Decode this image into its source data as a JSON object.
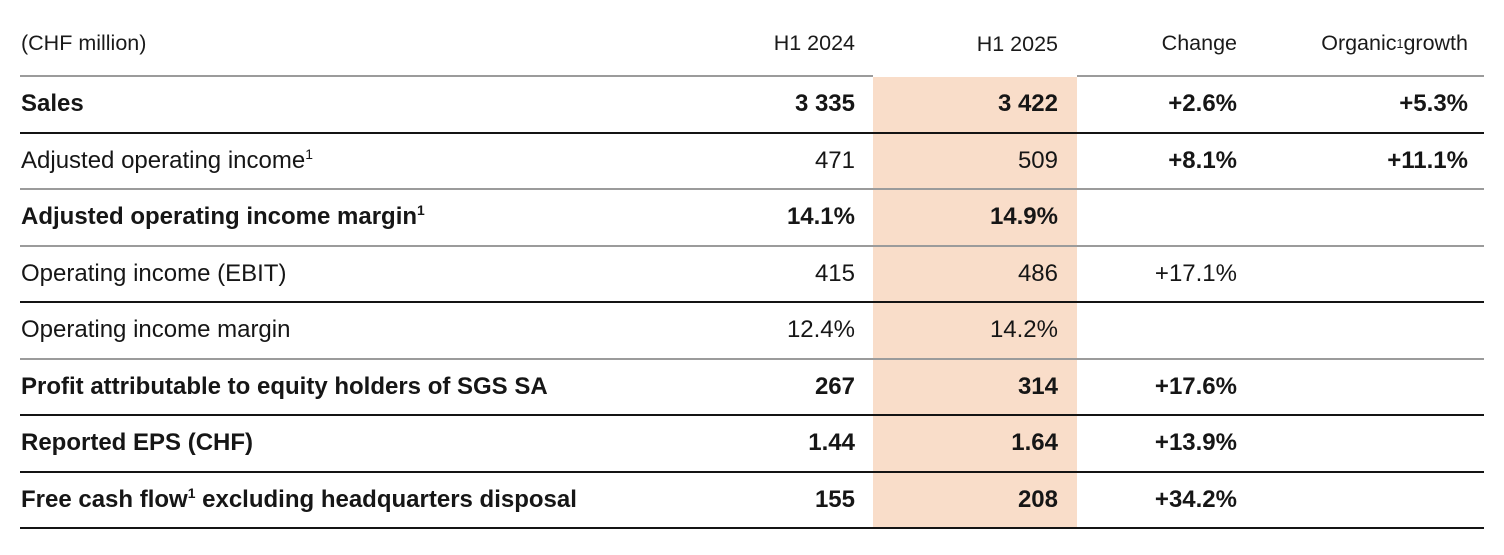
{
  "header": {
    "unit": "(CHF million)",
    "col_h1_2024": "H1 2024",
    "col_h1_2025": "H1 2025",
    "col_change": "Change",
    "col_organic_pre": "Organic",
    "col_organic_sup": "1",
    "col_organic_post": " growth"
  },
  "colors": {
    "highlight": "#f9ddc9",
    "rule_light": "#9b9b9b",
    "rule_dark": "#141414"
  },
  "rows": [
    {
      "label_pre": "Sales",
      "label_sup": "",
      "label_post": "",
      "h1_2024": "3 335",
      "h1_2025": "3 422",
      "change": "+2.6%",
      "organic": "+5.3%"
    },
    {
      "label_pre": "Adjusted operating income",
      "label_sup": "1",
      "label_post": "",
      "h1_2024": "471",
      "h1_2025": "509",
      "change": "+8.1%",
      "organic": "+11.1%"
    },
    {
      "label_pre": "Adjusted operating income margin",
      "label_sup": "1",
      "label_post": "",
      "h1_2024": "14.1%",
      "h1_2025": "14.9%",
      "change": "",
      "organic": ""
    },
    {
      "label_pre": "Operating income (EBIT)",
      "label_sup": "",
      "label_post": "",
      "h1_2024": "415",
      "h1_2025": "486",
      "change": "+17.1%",
      "organic": ""
    },
    {
      "label_pre": "Operating income margin",
      "label_sup": "",
      "label_post": "",
      "h1_2024": "12.4%",
      "h1_2025": "14.2%",
      "change": "",
      "organic": ""
    },
    {
      "label_pre": "Profit attributable to equity holders of SGS SA",
      "label_sup": "",
      "label_post": "",
      "h1_2024": "267",
      "h1_2025": "314",
      "change": "+17.6%",
      "organic": ""
    },
    {
      "label_pre": "Reported EPS (CHF)",
      "label_sup": "",
      "label_post": "",
      "h1_2024": "1.44",
      "h1_2025": "1.64",
      "change": "+13.9%",
      "organic": ""
    },
    {
      "label_pre": "Free cash flow",
      "label_sup": "1",
      "label_post": " excluding headquarters disposal",
      "h1_2024": "155",
      "h1_2025": "208",
      "change": "+34.2%",
      "organic": ""
    }
  ]
}
